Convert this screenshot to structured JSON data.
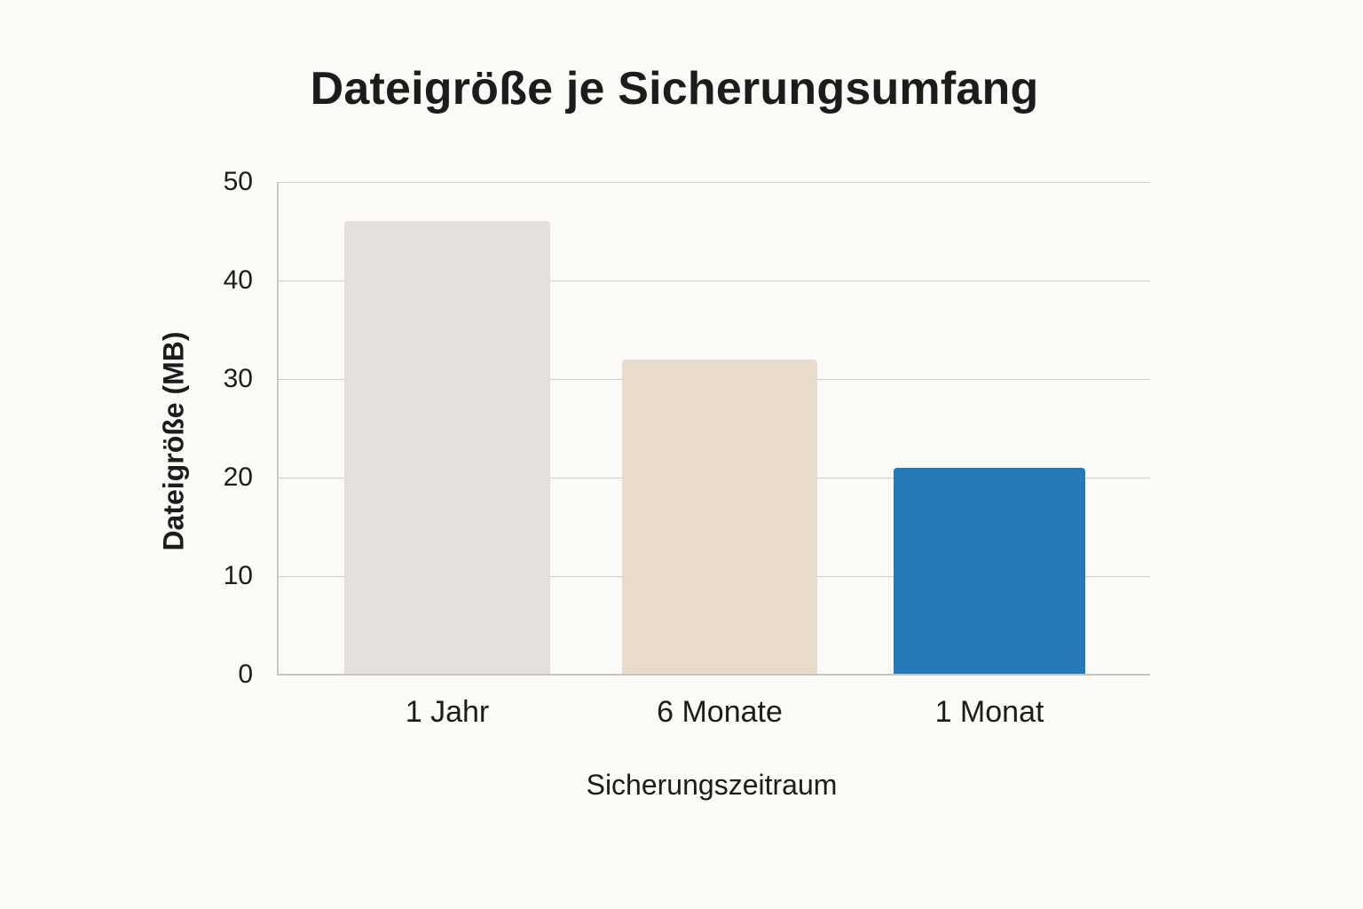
{
  "chart_data": {
    "type": "bar",
    "title": "Dateigröße je Sicherungsumfang",
    "xlabel": "Sicherungszeitraum",
    "ylabel": "Dateigröße (MB)",
    "categories": [
      "1 Jahr",
      "6 Monate",
      "1 Monat"
    ],
    "values": [
      46,
      32,
      21
    ],
    "ylim": [
      0,
      50
    ],
    "yticks": [
      0,
      10,
      20,
      30,
      40,
      50
    ],
    "grid": true,
    "legend": null,
    "colors": [
      "#E3E0DD",
      "#E8DBCA",
      "#2479B9"
    ]
  },
  "style": {
    "background": "#FCFBF7",
    "gridline_color": "#CFCDCC"
  }
}
